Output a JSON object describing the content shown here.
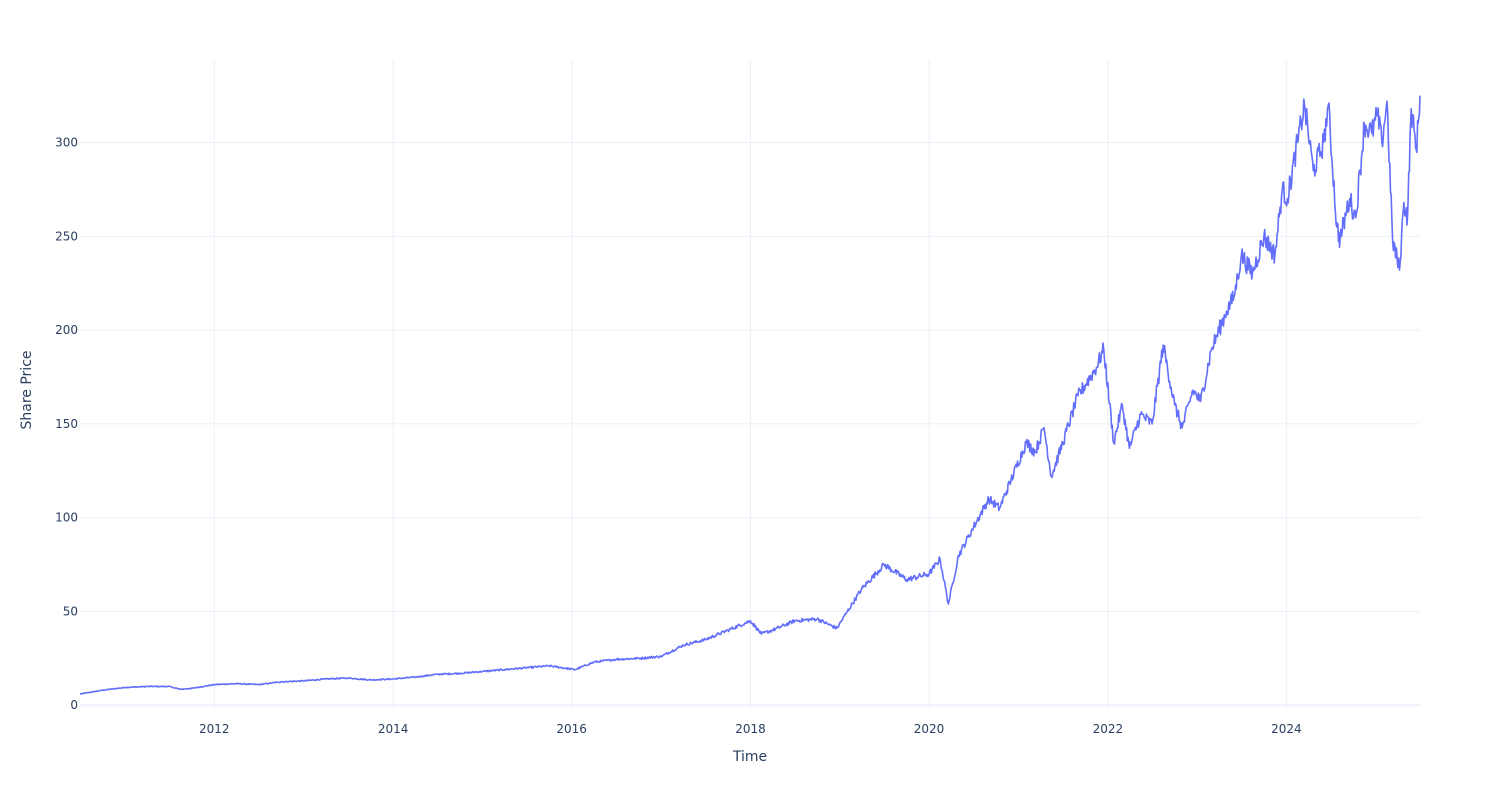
{
  "chart_data": {
    "type": "line",
    "title": "",
    "xlabel": "Time",
    "ylabel": "Share Price",
    "x_ticks": [
      "2012",
      "2014",
      "2016",
      "2018",
      "2020",
      "2022",
      "2024"
    ],
    "y_ticks": [
      0,
      50,
      100,
      150,
      200,
      250,
      300
    ],
    "xlim": [
      "2010-07-01",
      "2025-06-30"
    ],
    "ylim": [
      -2,
      344
    ],
    "grid": true,
    "legend": "none",
    "colors": {
      "line": "#636efa",
      "grid": "#ebf0f8",
      "text": "#2a3f5f"
    },
    "series": [
      {
        "x": [
          "2010-07-01",
          "2010-10-01",
          "2011-01-01",
          "2011-04-01",
          "2011-07-01",
          "2011-08-15",
          "2011-10-01",
          "2012-01-01",
          "2012-04-01",
          "2012-07-01",
          "2012-10-01",
          "2013-01-01",
          "2013-04-01",
          "2013-07-01",
          "2013-10-01",
          "2014-01-01",
          "2014-04-01",
          "2014-07-01",
          "2014-10-01",
          "2015-01-01",
          "2015-04-01",
          "2015-07-01",
          "2015-10-01",
          "2016-01-15",
          "2016-04-01",
          "2016-07-01",
          "2016-10-01",
          "2017-01-01",
          "2017-04-01",
          "2017-07-01",
          "2017-10-01",
          "2018-01-01",
          "2018-02-15",
          "2018-04-01",
          "2018-07-01",
          "2018-10-01",
          "2018-12-20",
          "2019-02-01",
          "2019-04-01",
          "2019-07-01",
          "2019-10-01",
          "2020-01-01",
          "2020-02-15",
          "2020-03-20",
          "2020-05-01",
          "2020-07-01",
          "2020-09-01",
          "2020-10-15",
          "2020-12-01",
          "2021-02-01",
          "2021-03-10",
          "2021-04-15",
          "2021-05-15",
          "2021-07-01",
          "2021-09-01",
          "2021-11-15",
          "2021-12-15",
          "2022-01-25",
          "2022-03-01",
          "2022-03-30",
          "2022-05-15",
          "2022-07-01",
          "2022-08-15",
          "2022-10-01",
          "2022-11-01",
          "2022-12-15",
          "2023-01-15",
          "2023-03-01",
          "2023-05-01",
          "2023-06-01",
          "2023-07-01",
          "2023-08-15",
          "2023-10-01",
          "2023-11-15",
          "2023-12-15",
          "2024-01-05",
          "2024-02-15",
          "2024-03-15",
          "2024-04-20",
          "2024-06-01",
          "2024-06-20",
          "2024-07-25",
          "2024-08-07",
          "2024-09-15",
          "2024-10-10",
          "2024-11-15",
          "2024-12-15",
          "2025-01-07",
          "2025-01-25",
          "2025-02-15",
          "2025-03-10",
          "2025-04-07",
          "2025-04-25",
          "2025-05-10",
          "2025-05-25",
          "2025-06-15",
          "2025-06-30"
        ],
        "y": [
          6,
          8,
          9.5,
          10,
          10,
          8.5,
          9,
          11,
          11.5,
          11,
          12.5,
          13,
          14,
          14.5,
          13.5,
          14,
          15,
          16.5,
          17,
          18,
          19,
          20,
          21,
          19,
          23,
          24.5,
          25,
          26,
          32,
          35,
          40,
          45,
          38,
          40,
          45,
          46,
          41,
          50,
          62,
          75,
          67,
          70,
          78,
          54,
          80,
          95,
          110,
          105,
          120,
          140,
          135,
          148,
          122,
          140,
          165,
          180,
          190,
          140,
          160,
          137,
          155,
          150,
          192,
          160,
          148,
          168,
          162,
          190,
          210,
          218,
          240,
          230,
          250,
          240,
          275,
          270,
          300,
          320,
          285,
          300,
          320,
          255,
          248,
          270,
          260,
          310,
          305,
          315,
          300,
          322,
          248,
          232,
          268,
          260,
          318,
          296,
          325
        ]
      }
    ]
  }
}
